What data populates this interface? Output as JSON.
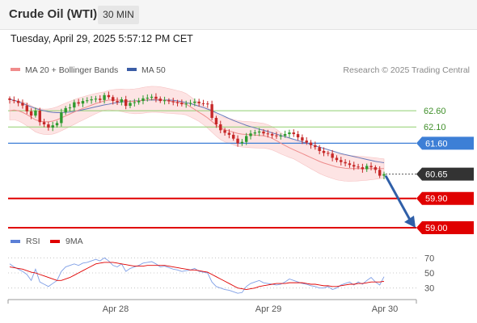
{
  "header": {
    "instrument": "Crude Oil (WTI)",
    "timeframe": "30 MIN",
    "datetime": "Tuesday, April 29, 2025 5:57:12 PM CET"
  },
  "legend": {
    "items": [
      {
        "label": "MA 20 + Bollinger Bands",
        "color": "#f08c8c"
      },
      {
        "label": "MA 50",
        "color": "#3b5da6"
      }
    ],
    "credit": "Research © 2025 Trading Central"
  },
  "rsi_legend": {
    "items": [
      {
        "label": "RSI",
        "color": "#5b7fd6"
      },
      {
        "label": "9MA",
        "color": "#e00000"
      }
    ]
  },
  "colors": {
    "bull": "#2e9a2e",
    "bear": "#c62828",
    "resistance": "#8fcf6f",
    "pivot_blue": "#3d7fd6",
    "support": "#e00000",
    "last": "#333333",
    "band_fill": "#fde4e4"
  },
  "chart_data": {
    "type": "candlestick",
    "price_ylim": [
      58.8,
      63.1
    ],
    "x_ticks": [
      "Apr 28",
      "Apr 29",
      "Apr 30"
    ],
    "levels": [
      {
        "value": 62.6,
        "label": "62.60",
        "kind": "resistance"
      },
      {
        "value": 62.1,
        "label": "62.10",
        "kind": "resistance"
      },
      {
        "value": 61.6,
        "label": "61.60",
        "kind": "pivot"
      },
      {
        "value": 60.65,
        "label": "60.65",
        "kind": "last"
      },
      {
        "value": 59.9,
        "label": "59.90",
        "kind": "support"
      },
      {
        "value": 59.0,
        "label": "59.00",
        "kind": "support"
      }
    ],
    "close": [
      62.93,
      62.9,
      62.84,
      62.76,
      62.58,
      62.45,
      62.6,
      62.25,
      62.18,
      62.08,
      62.15,
      62.22,
      62.55,
      62.68,
      62.7,
      62.86,
      62.82,
      62.9,
      62.92,
      62.95,
      62.97,
      62.93,
      63.08,
      63.02,
      62.9,
      62.86,
      62.95,
      62.75,
      62.84,
      62.86,
      62.9,
      62.98,
      63.0,
      63.03,
      62.97,
      62.9,
      62.92,
      62.89,
      62.86,
      62.84,
      62.8,
      62.82,
      62.84,
      62.88,
      62.83,
      62.82,
      62.8,
      62.38,
      62.18,
      62.0,
      61.92,
      61.86,
      61.74,
      61.6,
      61.64,
      61.82,
      61.9,
      61.93,
      61.96,
      61.9,
      61.88,
      61.84,
      61.82,
      61.83,
      61.88,
      61.93,
      61.88,
      61.78,
      61.68,
      61.62,
      61.54,
      61.48,
      61.36,
      61.3,
      61.28,
      61.15,
      61.08,
      61.02,
      60.98,
      60.93,
      60.88,
      60.86,
      60.8,
      60.9,
      60.86,
      60.78,
      60.6,
      60.65
    ],
    "ma20": [
      62.6,
      62.62,
      62.6,
      62.55,
      62.48,
      62.4,
      62.32,
      62.28,
      62.26,
      62.26,
      62.28,
      62.32,
      62.38,
      62.44,
      62.5,
      62.56,
      62.62,
      62.67,
      62.72,
      62.77,
      62.82,
      62.86,
      62.9,
      62.93,
      62.93,
      62.93,
      62.92,
      62.9,
      62.89,
      62.89,
      62.9,
      62.92,
      62.94,
      62.95,
      62.95,
      62.94,
      62.92,
      62.9,
      62.88,
      62.86,
      62.84,
      62.8,
      62.72,
      62.64,
      62.55,
      62.47,
      62.38,
      62.27,
      62.16,
      62.07,
      62.01,
      61.98,
      61.94,
      61.9,
      61.88,
      61.87,
      61.86,
      61.85,
      61.84,
      61.83,
      61.8,
      61.75,
      61.68,
      61.6,
      61.53,
      61.46,
      61.4,
      61.34,
      61.28,
      61.22,
      61.16,
      61.1,
      61.04,
      60.99,
      60.95,
      60.91,
      60.87,
      60.85,
      60.83,
      60.82,
      60.82,
      60.82,
      60.82,
      60.82,
      60.82,
      60.82,
      60.82,
      60.82
    ],
    "ma50": [
      62.95,
      62.92,
      62.88,
      62.83,
      62.77,
      62.72,
      62.67,
      62.63,
      62.6,
      62.57,
      62.55,
      62.54,
      62.54,
      62.55,
      62.56,
      62.58,
      62.6,
      62.63,
      62.66,
      62.69,
      62.72,
      62.75,
      62.78,
      62.8,
      62.83,
      62.85,
      62.87,
      62.88,
      62.89,
      62.9,
      62.91,
      62.92,
      62.93,
      62.93,
      62.93,
      62.93,
      62.93,
      62.93,
      62.92,
      62.9,
      62.88,
      62.85,
      62.82,
      62.78,
      62.74,
      62.7,
      62.65,
      62.6,
      62.54,
      62.48,
      62.42,
      62.36,
      62.3,
      62.25,
      62.2,
      62.15,
      62.11,
      62.07,
      62.03,
      62.0,
      61.96,
      61.92,
      61.88,
      61.84,
      61.8,
      61.76,
      61.72,
      61.68,
      61.64,
      61.6,
      61.56,
      61.52,
      61.48,
      61.44,
      61.4,
      61.36,
      61.32,
      61.28,
      61.25,
      61.22,
      61.19,
      61.16,
      61.13,
      61.1,
      61.07,
      61.04,
      61.02,
      61.0
    ],
    "rsi_ylim": [
      20,
      80
    ],
    "rsi_ticks": [
      70,
      50,
      30
    ],
    "rsi": [
      62,
      58,
      55,
      52,
      48,
      40,
      55,
      38,
      35,
      32,
      36,
      40,
      52,
      58,
      60,
      62,
      60,
      63,
      64,
      66,
      68,
      66,
      70,
      66,
      60,
      58,
      62,
      52,
      56,
      58,
      60,
      63,
      64,
      65,
      62,
      58,
      59,
      57,
      55,
      54,
      52,
      53,
      54,
      56,
      52,
      51,
      50,
      38,
      32,
      30,
      28,
      27,
      25,
      23,
      24,
      32,
      36,
      38,
      40,
      37,
      36,
      35,
      34,
      35,
      38,
      42,
      40,
      38,
      36,
      35,
      33,
      32,
      30,
      30,
      32,
      28,
      30,
      34,
      36,
      38,
      34,
      38,
      35,
      40,
      44,
      38,
      34,
      45
    ],
    "rsi_ma9": [
      58,
      57,
      56,
      55,
      53,
      51,
      50,
      48,
      46,
      44,
      42,
      40,
      40,
      42,
      44,
      47,
      50,
      53,
      56,
      59,
      62,
      63,
      64,
      64,
      64,
      63,
      62,
      61,
      60,
      59,
      59,
      59,
      60,
      60,
      60,
      60,
      60,
      59,
      58,
      57,
      56,
      55,
      54,
      54,
      53,
      52,
      51,
      48,
      45,
      42,
      39,
      36,
      33,
      30,
      29,
      28,
      29,
      30,
      32,
      33,
      34,
      35,
      36,
      36,
      36,
      37,
      37,
      37,
      37,
      36,
      35,
      35,
      34,
      33,
      33,
      32,
      32,
      33,
      34,
      35,
      35,
      36,
      36,
      37,
      38,
      38,
      38,
      39
    ]
  }
}
